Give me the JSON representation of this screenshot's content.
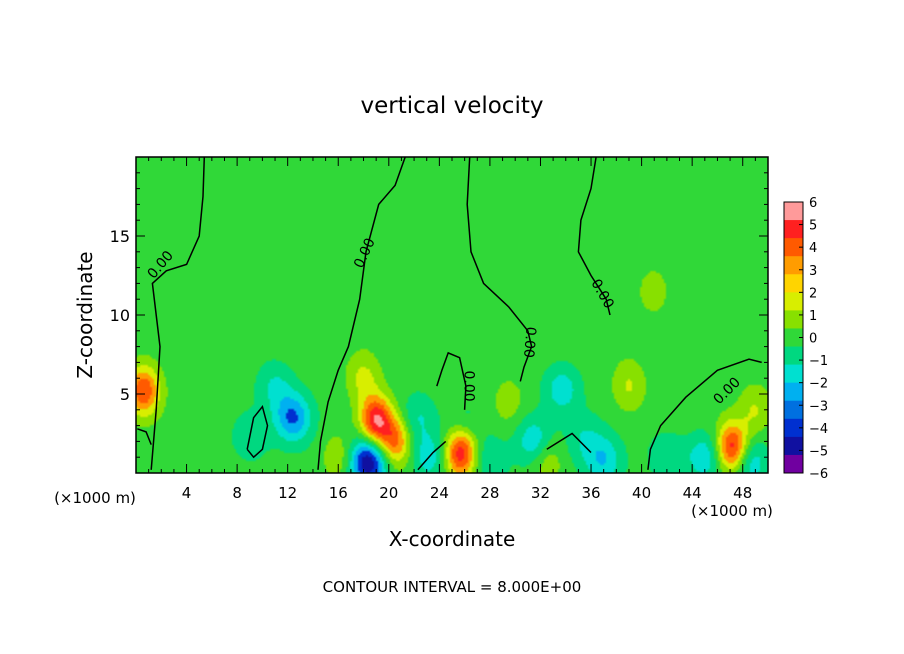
{
  "chart_data": {
    "type": "heatmap",
    "title": "vertical velocity",
    "xlabel": "X-coordinate",
    "ylabel": "Z-coordinate",
    "x_units_left": "(×1000 m)",
    "x_units_right": "(×1000 m)",
    "xlim": [
      0,
      50
    ],
    "ylim": [
      0,
      20
    ],
    "x_ticks": [
      "4",
      "8",
      "12",
      "16",
      "20",
      "24",
      "28",
      "32",
      "36",
      "40",
      "44",
      "48"
    ],
    "y_ticks": [
      "5",
      "10",
      "15"
    ],
    "contour_label": "0.00",
    "footer": "CONTOUR INTERVAL = 8.000E+00",
    "colorbar": {
      "ticks": [
        "6",
        "5",
        "4",
        "3",
        "2",
        "1",
        "0",
        "−1",
        "−2",
        "−3",
        "−4",
        "−5",
        "−6"
      ],
      "colors": [
        "#ff9a9a",
        "#ff2020",
        "#ff5a00",
        "#ff9c00",
        "#ffd400",
        "#d8ee00",
        "#88e000",
        "#30d838",
        "#00d880",
        "#00e0d0",
        "#00b0f0",
        "#0070e0",
        "#0030d0",
        "#1010a0",
        "#7000a0"
      ]
    },
    "features": [
      {
        "x": 0.6,
        "z": 5.2,
        "w": 4.5
      },
      {
        "x": 12.4,
        "z": 3.5,
        "w": -3.6
      },
      {
        "x": 11.0,
        "z": 5.5,
        "w": -1.6
      },
      {
        "x": 19.0,
        "z": 3.3,
        "w": 5.6
      },
      {
        "x": 20.5,
        "z": 2.0,
        "w": 3.8
      },
      {
        "x": 18.0,
        "z": 6.0,
        "w": 1.8
      },
      {
        "x": 18.4,
        "z": 0.7,
        "w": -5.5
      },
      {
        "x": 9.0,
        "z": 2.3,
        "w": -1.5
      },
      {
        "x": 16.0,
        "z": 1.0,
        "w": 1.5
      },
      {
        "x": 25.7,
        "z": 1.3,
        "w": 5.3
      },
      {
        "x": 23.2,
        "z": 1.0,
        "w": -2.2
      },
      {
        "x": 22.3,
        "z": 3.5,
        "w": -1.6
      },
      {
        "x": 26.0,
        "z": 3.0,
        "w": -1.2
      },
      {
        "x": 28.0,
        "z": 0.8,
        "w": -1.6
      },
      {
        "x": 29.5,
        "z": 4.5,
        "w": 1.0
      },
      {
        "x": 31.5,
        "z": 2.0,
        "w": -2.4
      },
      {
        "x": 33.7,
        "z": 5.3,
        "w": -2.1
      },
      {
        "x": 35.5,
        "z": 2.2,
        "w": -1.3
      },
      {
        "x": 37.0,
        "z": 0.8,
        "w": -2.3
      },
      {
        "x": 32.5,
        "z": 0.8,
        "w": 1.6
      },
      {
        "x": 39.0,
        "z": 5.5,
        "w": 1.6
      },
      {
        "x": 42.0,
        "z": 1.0,
        "w": -1.5
      },
      {
        "x": 47.2,
        "z": 1.6,
        "w": 5.4
      },
      {
        "x": 45.0,
        "z": 1.0,
        "w": -2.5
      },
      {
        "x": 49.0,
        "z": 4.0,
        "w": 1.5
      },
      {
        "x": 41.0,
        "z": 11.5,
        "w": 1.0
      },
      {
        "x": 48.5,
        "z": 0.7,
        "w": -2.6
      }
    ],
    "zero_contours": [
      [
        [
          1.2,
          0.2
        ],
        [
          1.6,
          4.0
        ],
        [
          1.9,
          8.0
        ],
        [
          1.3,
          12.0
        ],
        [
          2.4,
          12.8
        ],
        [
          4.0,
          13.2
        ],
        [
          5.0,
          15.0
        ],
        [
          5.3,
          17.5
        ],
        [
          5.4,
          20.0
        ]
      ],
      [
        [
          21.3,
          20.0
        ],
        [
          20.5,
          18.2
        ],
        [
          19.2,
          17.0
        ],
        [
          18.2,
          14.0
        ],
        [
          17.7,
          11.0
        ],
        [
          16.8,
          8.0
        ],
        [
          16.0,
          6.5
        ],
        [
          15.2,
          4.5
        ],
        [
          14.6,
          2.0
        ],
        [
          14.4,
          0.2
        ]
      ],
      [
        [
          26.4,
          20.0
        ],
        [
          26.2,
          17.0
        ],
        [
          26.5,
          14.0
        ],
        [
          27.5,
          12.0
        ],
        [
          29.5,
          10.5
        ],
        [
          31.0,
          9.0
        ],
        [
          31.3,
          8.0
        ],
        [
          30.7,
          6.7
        ],
        [
          30.4,
          5.8
        ]
      ],
      [
        [
          36.4,
          20.0
        ],
        [
          36.0,
          18.0
        ],
        [
          35.2,
          16.0
        ],
        [
          35.0,
          14.0
        ],
        [
          36.0,
          12.5
        ],
        [
          37.2,
          11.0
        ],
        [
          37.5,
          10.0
        ]
      ],
      [
        [
          26.0,
          4.0
        ],
        [
          26.1,
          5.5
        ],
        [
          25.6,
          7.3
        ],
        [
          24.7,
          7.6
        ],
        [
          24.2,
          6.5
        ],
        [
          23.8,
          5.5
        ]
      ],
      [
        [
          40.5,
          0.2
        ],
        [
          40.7,
          1.5
        ],
        [
          41.5,
          3.0
        ],
        [
          43.5,
          4.8
        ],
        [
          46.0,
          6.5
        ],
        [
          48.5,
          7.2
        ],
        [
          49.5,
          7.0
        ]
      ],
      [
        [
          8.8,
          1.5
        ],
        [
          9.3,
          3.5
        ],
        [
          10.0,
          4.2
        ],
        [
          10.4,
          3.0
        ],
        [
          10.0,
          1.5
        ],
        [
          9.3,
          1.0
        ],
        [
          8.8,
          1.5
        ]
      ],
      [
        [
          32.5,
          1.5
        ],
        [
          34.5,
          2.5
        ],
        [
          36.0,
          1.3
        ]
      ],
      [
        [
          0.1,
          2.8
        ],
        [
          0.8,
          2.6
        ],
        [
          1.2,
          1.8
        ]
      ],
      [
        [
          22.3,
          0.2
        ],
        [
          23.5,
          1.3
        ],
        [
          24.5,
          2.0
        ]
      ]
    ],
    "contour_label_positions": [
      {
        "x": 2.2,
        "z": 13.0,
        "angle": -50
      },
      {
        "x": 18.4,
        "z": 13.8,
        "angle": -65
      },
      {
        "x": 30.8,
        "z": 8.3,
        "angle": 95
      },
      {
        "x": 36.6,
        "z": 11.2,
        "angle": 60
      },
      {
        "x": 26.0,
        "z": 5.5,
        "angle": 90
      },
      {
        "x": 47.0,
        "z": 5.0,
        "angle": -45
      }
    ],
    "grid": false
  }
}
